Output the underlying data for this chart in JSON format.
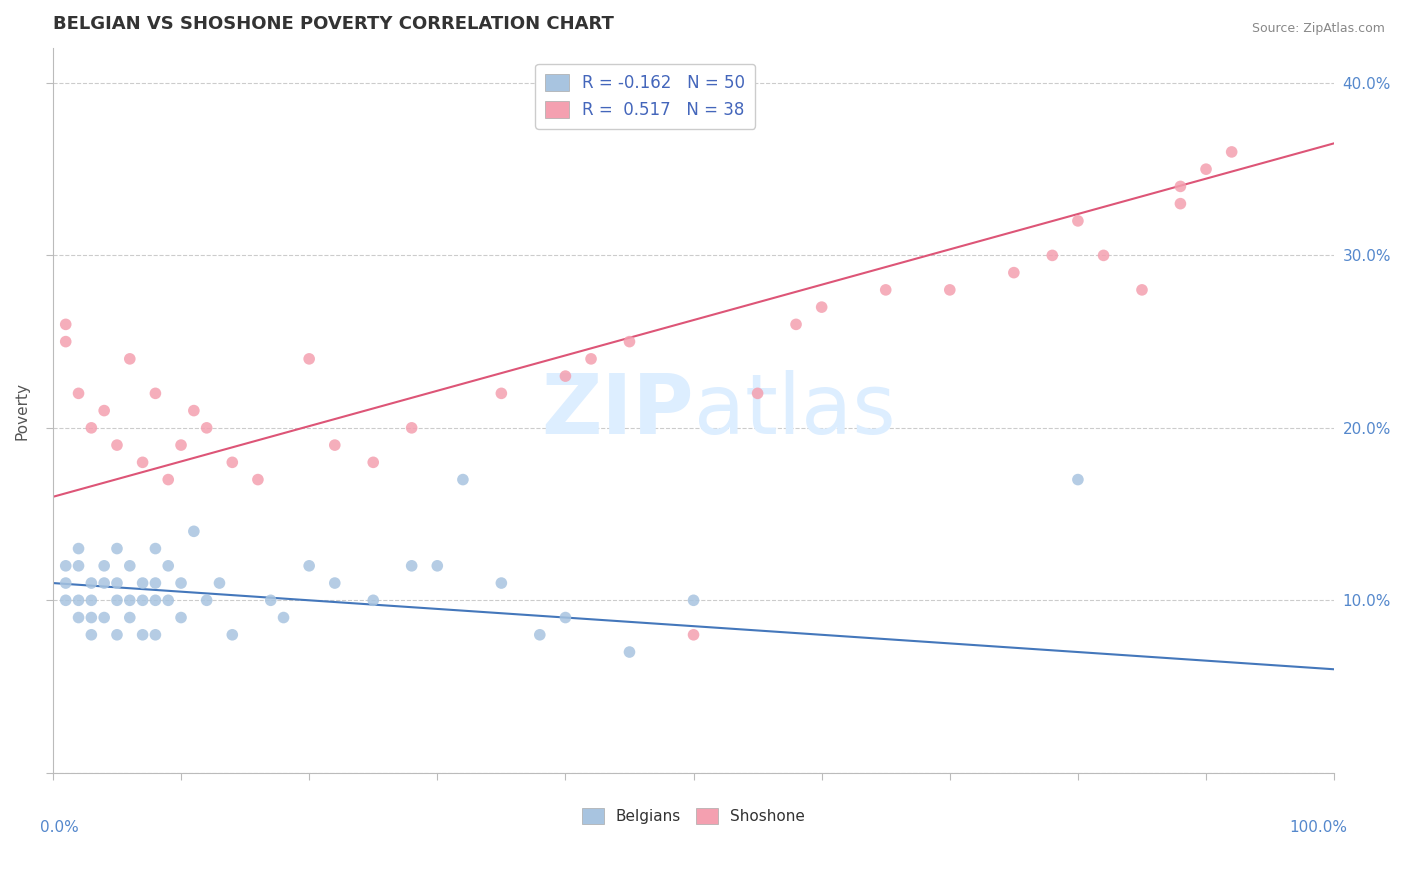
{
  "title": "BELGIAN VS SHOSHONE POVERTY CORRELATION CHART",
  "source": "Source: ZipAtlas.com",
  "ylabel": "Poverty",
  "xlim": [
    0,
    100
  ],
  "ylim": [
    0,
    42
  ],
  "belgians_R": -0.162,
  "belgians_N": 50,
  "shoshone_R": 0.517,
  "shoshone_N": 38,
  "belgian_color": "#a8c4e0",
  "shoshone_color": "#f4a0b0",
  "belgian_line_color": "#4477bb",
  "shoshone_line_color": "#dd5577",
  "watermark_color": "#ddeeff",
  "bel_line_y0": 11.0,
  "bel_line_y100": 6.0,
  "sho_line_y0": 16.0,
  "sho_line_y100": 36.5,
  "belgians_x": [
    1,
    1,
    1,
    2,
    2,
    2,
    2,
    3,
    3,
    3,
    3,
    4,
    4,
    4,
    5,
    5,
    5,
    5,
    6,
    6,
    6,
    7,
    7,
    7,
    8,
    8,
    8,
    8,
    9,
    9,
    10,
    10,
    11,
    12,
    13,
    14,
    17,
    18,
    20,
    22,
    25,
    28,
    30,
    32,
    35,
    38,
    40,
    45,
    50,
    80
  ],
  "belgians_y": [
    12,
    11,
    10,
    13,
    12,
    10,
    9,
    11,
    10,
    9,
    8,
    12,
    11,
    9,
    13,
    11,
    10,
    8,
    12,
    10,
    9,
    11,
    10,
    8,
    13,
    11,
    10,
    8,
    12,
    10,
    11,
    9,
    14,
    10,
    11,
    8,
    10,
    9,
    12,
    11,
    10,
    12,
    12,
    17,
    11,
    8,
    9,
    7,
    10,
    17
  ],
  "shoshone_x": [
    1,
    1,
    2,
    3,
    4,
    5,
    6,
    7,
    8,
    9,
    10,
    11,
    12,
    14,
    16,
    20,
    22,
    25,
    28,
    35,
    40,
    42,
    45,
    50,
    55,
    58,
    60,
    65,
    70,
    75,
    78,
    80,
    82,
    85,
    88,
    88,
    90,
    92
  ],
  "shoshone_y": [
    25,
    26,
    22,
    20,
    21,
    19,
    24,
    18,
    22,
    17,
    19,
    21,
    20,
    18,
    17,
    24,
    19,
    18,
    20,
    22,
    23,
    24,
    25,
    8,
    22,
    26,
    27,
    28,
    28,
    29,
    30,
    32,
    30,
    28,
    33,
    34,
    35,
    36
  ]
}
